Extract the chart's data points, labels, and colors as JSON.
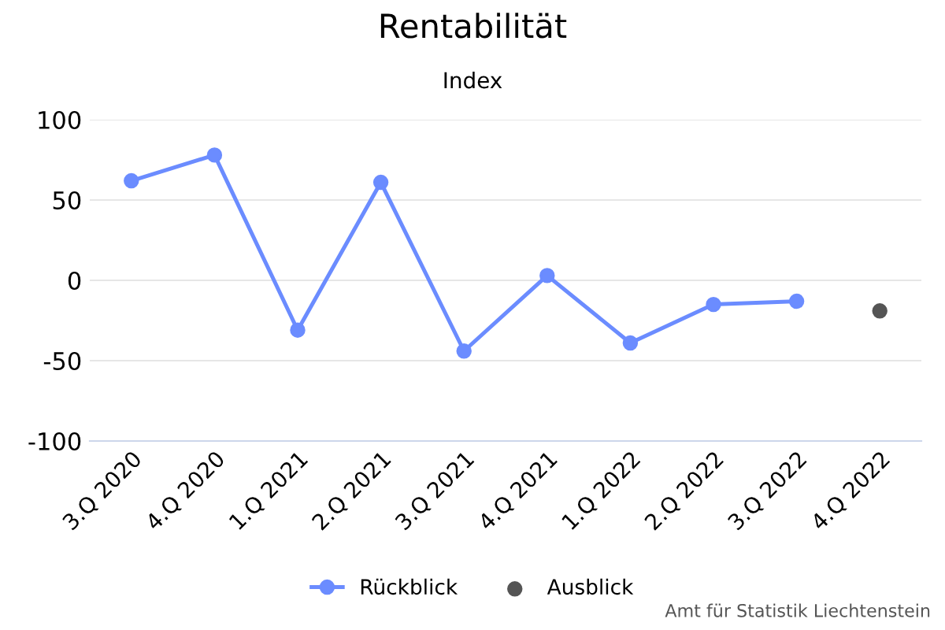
{
  "chart_data": {
    "type": "line",
    "title": "Rentabilität",
    "subtitle": "Index",
    "categories": [
      "3.Q 2020",
      "4.Q 2020",
      "1.Q 2021",
      "2.Q 2021",
      "3.Q 2021",
      "4.Q 2021",
      "1.Q 2022",
      "2.Q 2022",
      "3.Q 2022",
      "4.Q 2022"
    ],
    "series": [
      {
        "name": "Rückblick",
        "color": "#6b8cff",
        "values": [
          62,
          78,
          -31,
          61,
          -44,
          3,
          -39,
          -15,
          -13,
          null
        ]
      },
      {
        "name": "Ausblick",
        "color": "#555555",
        "type": "scatter",
        "values": [
          null,
          null,
          null,
          null,
          null,
          null,
          null,
          null,
          null,
          -19
        ]
      }
    ],
    "ylim": [
      -100,
      100
    ],
    "yticks": [
      -100,
      -50,
      0,
      50,
      100
    ],
    "grid": "y",
    "legend": "bottom",
    "marker": "circle",
    "annotations": [
      "Amt für Statistik Liechtenstein"
    ]
  }
}
